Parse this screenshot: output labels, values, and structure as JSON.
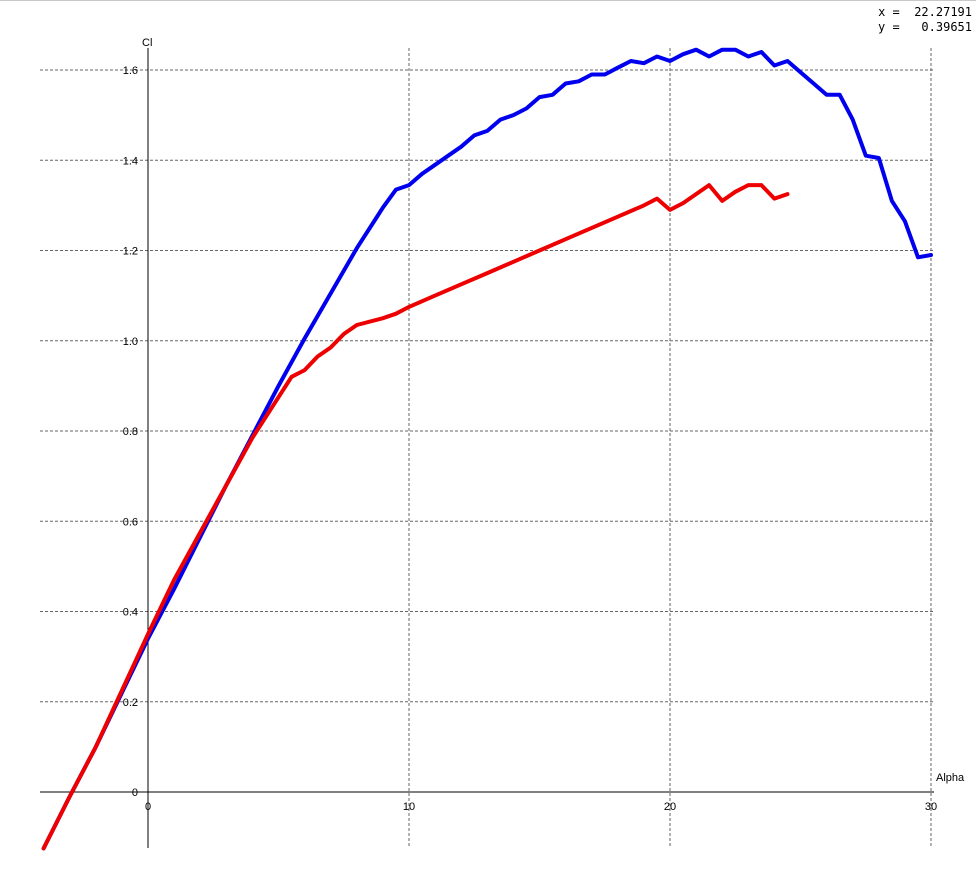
{
  "cursor_readout": {
    "x_label": "x =",
    "x_value": "22.27191",
    "y_label": "y =",
    "y_value": "0.39651"
  },
  "chart_data": {
    "type": "line",
    "xlabel": "Alpha",
    "ylabel": "Cl",
    "xlim": [
      -4,
      30
    ],
    "ylim": [
      -0.13,
      1.68
    ],
    "x_ticks": [
      0,
      10,
      20,
      30
    ],
    "y_ticks": [
      0,
      0.2,
      0.4,
      0.6,
      0.8,
      1.0,
      1.2,
      1.4,
      1.6
    ],
    "x_tick_labels": [
      "0",
      "10",
      "20",
      "30"
    ],
    "y_tick_labels": [
      "0",
      "0.2",
      "0.4",
      "0.6",
      "0.8",
      "1.0",
      "1.2",
      "1.4",
      "1.6"
    ],
    "grid": true,
    "series": [
      {
        "color": "#0000ee",
        "x": [
          -4,
          -3,
          -2,
          -1,
          0,
          1,
          2,
          3,
          4,
          5,
          6,
          7,
          8,
          9,
          9.5,
          10,
          10.5,
          11,
          11.5,
          12,
          12.5,
          13,
          13.5,
          14,
          14.5,
          15,
          15.5,
          16,
          16.5,
          17,
          17.5,
          18,
          18.5,
          19,
          19.5,
          20,
          20.5,
          21,
          21.5,
          22,
          22.5,
          23,
          23.5,
          24,
          24.5,
          25,
          25.5,
          26,
          26.5,
          27,
          27.5,
          28,
          28.5,
          29,
          29.5,
          30
        ],
        "y": [
          -0.125,
          -0.01,
          0.1,
          0.22,
          0.34,
          0.45,
          0.565,
          0.68,
          0.79,
          0.9,
          1.005,
          1.105,
          1.205,
          1.295,
          1.335,
          1.345,
          1.37,
          1.39,
          1.41,
          1.43,
          1.455,
          1.465,
          1.49,
          1.5,
          1.515,
          1.54,
          1.545,
          1.57,
          1.575,
          1.59,
          1.59,
          1.605,
          1.62,
          1.615,
          1.63,
          1.62,
          1.635,
          1.645,
          1.63,
          1.645,
          1.645,
          1.63,
          1.64,
          1.61,
          1.62,
          1.595,
          1.57,
          1.545,
          1.545,
          1.49,
          1.41,
          1.405,
          1.31,
          1.265,
          1.185,
          1.19
        ]
      },
      {
        "color": "#ee0000",
        "x": [
          -4,
          -3,
          -2,
          -1,
          0,
          1,
          2,
          3,
          4,
          5,
          5.5,
          6,
          6.5,
          7,
          7.5,
          8,
          9,
          9.5,
          10,
          11,
          12,
          13,
          14,
          15,
          16,
          17,
          18,
          19,
          19.5,
          20,
          20.5,
          21,
          21.5,
          22,
          22.5,
          23,
          23.5,
          24,
          24.5
        ],
        "y": [
          -0.125,
          -0.01,
          0.1,
          0.225,
          0.35,
          0.47,
          0.575,
          0.68,
          0.785,
          0.875,
          0.92,
          0.935,
          0.965,
          0.985,
          1.015,
          1.035,
          1.05,
          1.06,
          1.075,
          1.1,
          1.125,
          1.15,
          1.175,
          1.2,
          1.225,
          1.25,
          1.275,
          1.3,
          1.315,
          1.29,
          1.305,
          1.325,
          1.345,
          1.31,
          1.33,
          1.345,
          1.345,
          1.315,
          1.325
        ]
      }
    ]
  }
}
